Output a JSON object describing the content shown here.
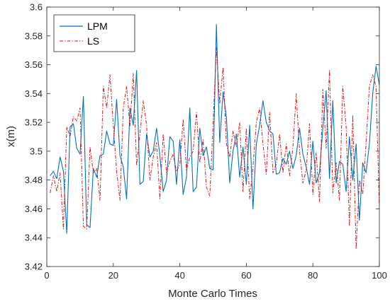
{
  "chart_data": {
    "type": "line",
    "title": "",
    "xlabel": "Monte Carlo Times",
    "ylabel": "x(m)",
    "xlim": [
      0,
      100
    ],
    "ylim": [
      3.42,
      3.6
    ],
    "xticks": [
      0,
      20,
      40,
      60,
      80,
      100
    ],
    "yticks": [
      3.42,
      3.44,
      3.46,
      3.48,
      3.5,
      3.52,
      3.54,
      3.56,
      3.58,
      3.6
    ],
    "ytick_labels": [
      "3.42",
      "3.44",
      "3.46",
      "3.48",
      "3.5",
      "3.52",
      "3.54",
      "3.56",
      "3.58",
      "3.6"
    ],
    "grid": false,
    "legend_position": "top-left",
    "x": [
      1,
      2,
      3,
      4,
      5,
      6,
      7,
      8,
      9,
      10,
      11,
      12,
      13,
      14,
      15,
      16,
      17,
      18,
      19,
      20,
      21,
      22,
      23,
      24,
      25,
      26,
      27,
      28,
      29,
      30,
      31,
      32,
      33,
      34,
      35,
      36,
      37,
      38,
      39,
      40,
      41,
      42,
      43,
      44,
      45,
      46,
      47,
      48,
      49,
      50,
      51,
      52,
      53,
      54,
      55,
      56,
      57,
      58,
      59,
      60,
      61,
      62,
      63,
      64,
      65,
      66,
      67,
      68,
      69,
      70,
      71,
      72,
      73,
      74,
      75,
      76,
      77,
      78,
      79,
      80,
      81,
      82,
      83,
      84,
      85,
      86,
      87,
      88,
      89,
      90,
      91,
      92,
      93,
      94,
      95,
      96,
      97,
      98,
      99,
      100
    ],
    "series": [
      {
        "name": "LPM",
        "color": "#0072BD",
        "style": "solid",
        "values": [
          3.483,
          3.486,
          3.481,
          3.496,
          3.486,
          3.443,
          3.517,
          3.519,
          3.502,
          3.498,
          3.538,
          3.449,
          3.447,
          3.488,
          3.482,
          3.497,
          3.498,
          3.514,
          3.505,
          3.504,
          3.536,
          3.497,
          3.489,
          3.467,
          3.53,
          3.518,
          3.556,
          3.477,
          3.479,
          3.512,
          3.496,
          3.5,
          3.516,
          3.497,
          3.472,
          3.48,
          3.51,
          3.507,
          3.477,
          3.508,
          3.47,
          3.482,
          3.53,
          3.472,
          3.475,
          3.516,
          3.497,
          3.503,
          3.488,
          3.487,
          3.588,
          3.506,
          3.541,
          3.524,
          3.478,
          3.5,
          3.512,
          3.482,
          3.503,
          3.477,
          3.518,
          3.46,
          3.505,
          3.518,
          3.535,
          3.52,
          3.514,
          3.512,
          3.484,
          3.485,
          3.495,
          3.491,
          3.5,
          3.488,
          3.497,
          3.516,
          3.498,
          3.489,
          3.477,
          3.507,
          3.478,
          3.485,
          3.516,
          3.542,
          3.481,
          3.535,
          3.478,
          3.493,
          3.491,
          3.472,
          3.51,
          3.48,
          3.505,
          3.452,
          3.492,
          3.485,
          3.505,
          3.54,
          3.559,
          3.546
        ]
      },
      {
        "name": "LS",
        "color": "#D7191C",
        "style": "dashdot",
        "values": [
          3.471,
          3.483,
          3.472,
          3.485,
          3.446,
          3.517,
          3.51,
          3.524,
          3.521,
          3.53,
          3.448,
          3.446,
          3.503,
          3.485,
          3.488,
          3.466,
          3.545,
          3.53,
          3.553,
          3.518,
          3.486,
          3.466,
          3.53,
          3.545,
          3.517,
          3.554,
          3.49,
          3.512,
          3.535,
          3.518,
          3.48,
          3.496,
          3.506,
          3.467,
          3.512,
          3.485,
          3.493,
          3.498,
          3.486,
          3.491,
          3.522,
          3.487,
          3.496,
          3.5,
          3.527,
          3.492,
          3.508,
          3.475,
          3.469,
          3.519,
          3.572,
          3.533,
          3.558,
          3.505,
          3.496,
          3.514,
          3.503,
          3.52,
          3.472,
          3.516,
          3.467,
          3.489,
          3.52,
          3.53,
          3.505,
          3.484,
          3.527,
          3.485,
          3.491,
          3.512,
          3.485,
          3.505,
          3.483,
          3.503,
          3.54,
          3.5,
          3.478,
          3.487,
          3.519,
          3.47,
          3.499,
          3.465,
          3.543,
          3.502,
          3.556,
          3.471,
          3.492,
          3.466,
          3.545,
          3.517,
          3.448,
          3.525,
          3.432,
          3.48,
          3.47,
          3.505,
          3.545,
          3.553,
          3.545,
          3.46
        ]
      }
    ]
  }
}
